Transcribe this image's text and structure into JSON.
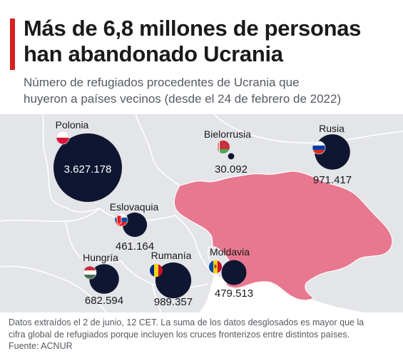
{
  "header": {
    "title_line1": "Más de 6,8 millones de personas",
    "title_line2": "han abandonado Ucrania",
    "subtitle_line1": "Número de refugiados procedentes de Ucrania que",
    "subtitle_line2": "huyeron a países vecinos (desde el 24 de febrero de 2022)"
  },
  "countries": [
    {
      "name": "Polonia",
      "value": "3.627.178"
    },
    {
      "name": "Bielorrusia",
      "value": "30.092"
    },
    {
      "name": "Rusia",
      "value": "971.417"
    },
    {
      "name": "Eslovaquia",
      "value": "461.164"
    },
    {
      "name": "Hungría",
      "value": "682.594"
    },
    {
      "name": "Rumanía",
      "value": "989.357"
    },
    {
      "name": "Moldavia",
      "value": "479.513"
    }
  ],
  "colors": {
    "accent": "#d6201f",
    "bubble": "#0f1631",
    "ukraine": "#e8788f",
    "land": "#e3e5e8",
    "border": "#ffffff"
  },
  "footer": {
    "note_line1": "Datos extraídos el 2 de junio, 12 CET. La suma de los datos desglosados es mayor que la",
    "note_line2": "cifra global de refugiados porque incluyen los cruces fronterizos entre distintos países.",
    "source": "Fuente: ACNUR"
  }
}
